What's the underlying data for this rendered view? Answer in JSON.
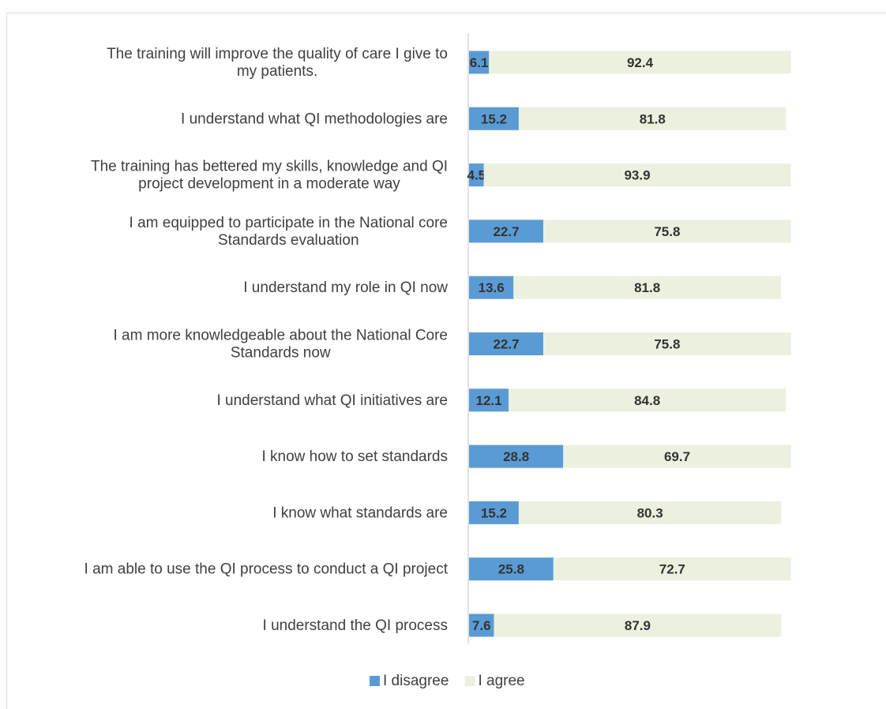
{
  "chart_data": {
    "type": "bar",
    "orientation": "horizontal",
    "stacked": true,
    "categories": [
      "The training will improve the quality of care I give to my patients.",
      "I understand  what  QI methodologies are",
      "The training has bettered my skills, knowledge and QI project development in a moderate way",
      "I am equipped to participate in the National core Standards evaluation",
      "I understand my role in QI now",
      "I am more knowledgeable about the National Core Standards now",
      "I understand what QI initiatives are",
      "I know how to set standards",
      "I know what standards are",
      "I am able to use the QI process to conduct a QI project",
      "I understand the QI process"
    ],
    "category_lines": [
      [
        "The training will improve the quality of care I give to",
        "my patients."
      ],
      [
        "I understand  what  QI methodologies are"
      ],
      [
        "The training has bettered my skills, knowledge and QI",
        "project development in a moderate way"
      ],
      [
        "I am equipped to participate in the National core",
        "Standards evaluation"
      ],
      [
        "I understand my role in QI now"
      ],
      [
        "I am more knowledgeable about the National Core",
        "Standards now"
      ],
      [
        "I understand what QI initiatives are"
      ],
      [
        "I know how to set standards"
      ],
      [
        "I know what standards are"
      ],
      [
        "I am able to use the QI process to conduct a QI project"
      ],
      [
        "I understand the QI process"
      ]
    ],
    "series": [
      {
        "name": "I disagree",
        "color": "#5b9bd5",
        "values": [
          6.1,
          15.2,
          4.5,
          22.7,
          13.6,
          22.7,
          12.1,
          28.8,
          15.2,
          25.8,
          7.6
        ]
      },
      {
        "name": "I agree",
        "color": "#ebf1de",
        "values": [
          92.4,
          81.8,
          93.9,
          75.8,
          81.8,
          75.8,
          84.8,
          69.7,
          80.3,
          72.7,
          87.9
        ]
      }
    ],
    "value_labels": [
      [
        "6.1",
        "15.2",
        "4.5",
        "22.7",
        "13.6",
        "22.7",
        "12.1",
        "28.8",
        "15.2",
        "25.8",
        "7.6"
      ],
      [
        "92.4",
        "81.8",
        "93.9",
        "75.8",
        "81.8",
        "75.8",
        "84.8",
        "69.7",
        "80.3",
        "72.7",
        "87.9"
      ]
    ],
    "xlim": [
      0,
      100
    ],
    "legend_position": "bottom",
    "grid": false
  }
}
